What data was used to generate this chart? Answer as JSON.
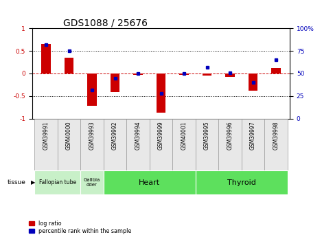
{
  "title": "GDS1088 / 25676",
  "samples": [
    "GSM39991",
    "GSM40000",
    "GSM39993",
    "GSM39992",
    "GSM39994",
    "GSM39999",
    "GSM40001",
    "GSM39995",
    "GSM39996",
    "GSM39997",
    "GSM39998"
  ],
  "log_ratio": [
    0.65,
    0.35,
    -0.72,
    -0.42,
    -0.03,
    -0.87,
    -0.03,
    -0.05,
    -0.07,
    -0.38,
    0.12
  ],
  "percentile_rank": [
    82,
    75,
    32,
    45,
    50,
    28,
    50,
    57,
    51,
    40,
    65
  ],
  "tissue_configs": [
    {
      "label": "Fallopian tube",
      "start": 0,
      "end": 2,
      "color": "#c8f0c8",
      "fontsize": 5.5,
      "bold": false
    },
    {
      "label": "Gallbla\ndder",
      "start": 2,
      "end": 3,
      "color": "#c8f0c8",
      "fontsize": 5.0,
      "bold": false
    },
    {
      "label": "Heart",
      "start": 3,
      "end": 7,
      "color": "#5de05d",
      "fontsize": 8,
      "bold": false
    },
    {
      "label": "Thyroid",
      "start": 7,
      "end": 11,
      "color": "#5de05d",
      "fontsize": 8,
      "bold": false
    }
  ],
  "ylim": [
    -1,
    1
  ],
  "y2lim": [
    0,
    100
  ],
  "yticks": [
    -1,
    -0.5,
    0,
    0.5,
    1
  ],
  "ytick_labels": [
    "-1",
    "-0.5",
    "0",
    "0.5",
    "1"
  ],
  "y2ticks": [
    0,
    25,
    50,
    75,
    100
  ],
  "y2tick_labels": [
    "0",
    "25",
    "50",
    "75",
    "100%"
  ],
  "bar_color": "#CC0000",
  "dot_color": "#0000BB",
  "zero_line_color": "#CC0000",
  "dotted_line_color": "#000000",
  "bg_color": "#ffffff",
  "title_fontsize": 10,
  "tick_fontsize": 6.5,
  "sample_fontsize": 5.5
}
